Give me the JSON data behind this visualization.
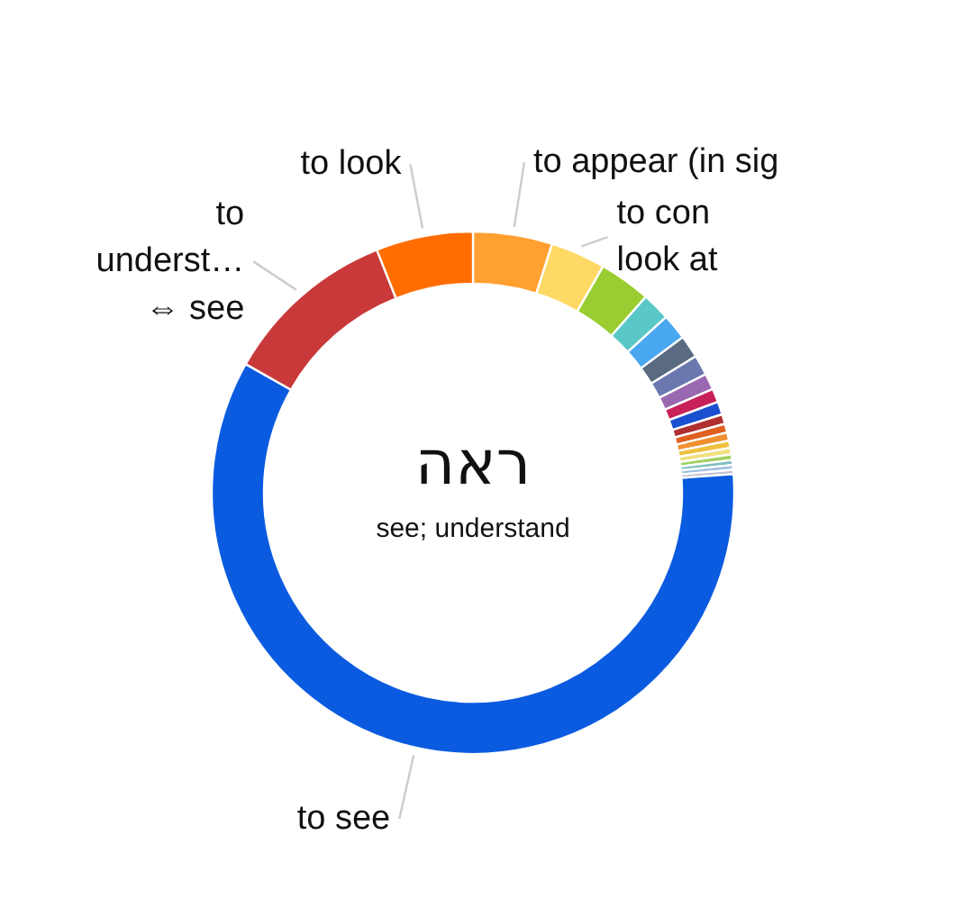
{
  "chart_data": {
    "type": "donut",
    "title": "ראה",
    "subtitle": "see; understand",
    "categories": [
      "to appear (in sig",
      "to con\nlook at",
      null,
      null,
      null,
      null,
      null,
      null,
      null,
      null,
      null,
      null,
      null,
      null,
      null,
      null,
      null,
      null,
      null,
      "to see",
      "to\nunderst…\n⇔ see",
      "to look"
    ],
    "values": [
      4.9,
      3.4,
      3.2,
      1.75,
      1.6,
      1.4,
      1.25,
      1.0,
      0.85,
      0.8,
      0.6,
      0.55,
      0.5,
      0.45,
      0.4,
      0.35,
      0.3,
      0.3,
      0.27,
      59.33,
      10.8,
      6.0
    ],
    "colors": [
      "#ffa030",
      "#ffd966",
      "#9acd32",
      "#5bc8c8",
      "#4aa8f0",
      "#5a6a80",
      "#6b78b0",
      "#9a68b0",
      "#c8205a",
      "#1a50d0",
      "#b03030",
      "#e06020",
      "#f09030",
      "#f0c040",
      "#f0e080",
      "#a0d060",
      "#80c0c0",
      "#a0c0e0",
      "#c0c0d0",
      "#0b5be0",
      "#c9393a",
      "#ff6d00"
    ]
  }
}
